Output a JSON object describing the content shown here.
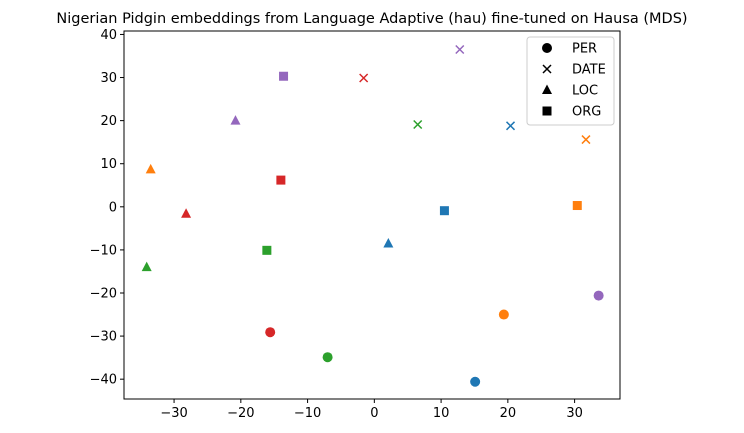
{
  "chart_data": {
    "type": "scatter",
    "title": "Nigerian Pidgin embeddings from Language Adaptive (hau) fine-tuned on Hausa (MDS)",
    "xlabel": "",
    "ylabel": "",
    "xlim": [
      -37.5,
      36.8
    ],
    "ylim": [
      -44.6,
      40.8
    ],
    "xticks": [
      -30,
      -20,
      -10,
      0,
      10,
      20,
      30
    ],
    "yticks": [
      -40,
      -30,
      -20,
      -10,
      0,
      10,
      20,
      30,
      40
    ],
    "grid": false,
    "legend_position": "top-right",
    "legend": [
      {
        "marker": "circle",
        "label": "PER"
      },
      {
        "marker": "x",
        "label": "DATE"
      },
      {
        "marker": "triangle",
        "label": "LOC"
      },
      {
        "marker": "square",
        "label": "ORG"
      }
    ],
    "colors": {
      "blue": "#1f77b4",
      "orange": "#ff7f0e",
      "green": "#2ca02c",
      "red": "#d62728",
      "purple": "#9467bd"
    },
    "points": [
      {
        "x": 15.1,
        "y": -40.6,
        "marker": "circle",
        "color": "blue"
      },
      {
        "x": 19.4,
        "y": -25.0,
        "marker": "circle",
        "color": "orange"
      },
      {
        "x": -7.0,
        "y": -34.9,
        "marker": "circle",
        "color": "green"
      },
      {
        "x": -15.6,
        "y": -29.1,
        "marker": "circle",
        "color": "red"
      },
      {
        "x": 33.6,
        "y": -20.6,
        "marker": "circle",
        "color": "purple"
      },
      {
        "x": 20.4,
        "y": 18.8,
        "marker": "x",
        "color": "blue"
      },
      {
        "x": 31.7,
        "y": 15.6,
        "marker": "x",
        "color": "orange"
      },
      {
        "x": 6.5,
        "y": 19.1,
        "marker": "x",
        "color": "green"
      },
      {
        "x": -1.6,
        "y": 29.9,
        "marker": "x",
        "color": "red"
      },
      {
        "x": 12.8,
        "y": 36.5,
        "marker": "x",
        "color": "purple"
      },
      {
        "x": 2.1,
        "y": -8.5,
        "marker": "triangle",
        "color": "blue"
      },
      {
        "x": -33.5,
        "y": 8.7,
        "marker": "triangle",
        "color": "orange"
      },
      {
        "x": -34.1,
        "y": -14.0,
        "marker": "triangle",
        "color": "green"
      },
      {
        "x": -28.2,
        "y": -1.6,
        "marker": "triangle",
        "color": "red"
      },
      {
        "x": -20.8,
        "y": 20.0,
        "marker": "triangle",
        "color": "purple"
      },
      {
        "x": 10.5,
        "y": -0.9,
        "marker": "square",
        "color": "blue"
      },
      {
        "x": 30.4,
        "y": 0.3,
        "marker": "square",
        "color": "orange"
      },
      {
        "x": -16.1,
        "y": -10.1,
        "marker": "square",
        "color": "green"
      },
      {
        "x": -14.0,
        "y": 6.2,
        "marker": "square",
        "color": "red"
      },
      {
        "x": -13.6,
        "y": 30.3,
        "marker": "square",
        "color": "purple"
      }
    ]
  }
}
